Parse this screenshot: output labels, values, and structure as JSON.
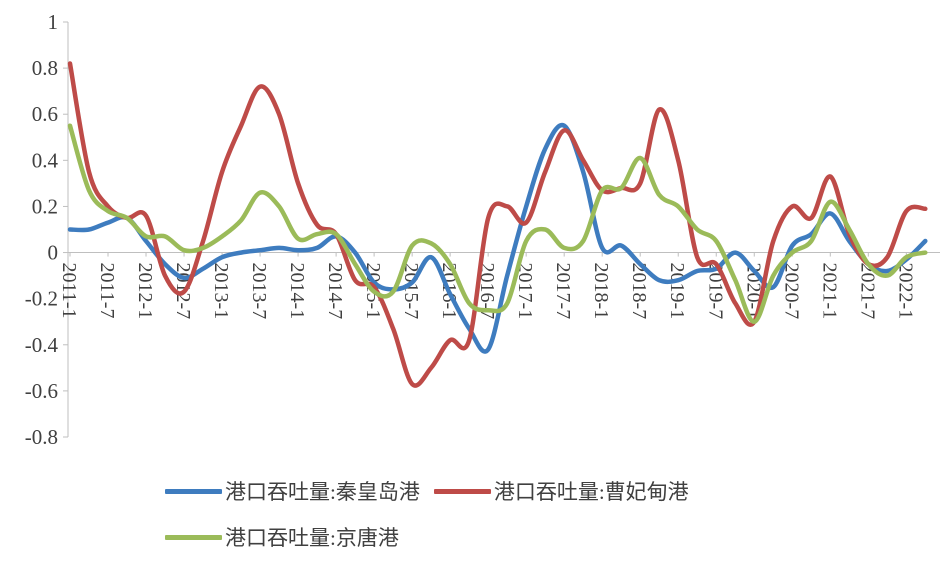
{
  "colors": {
    "text": "#404040",
    "axis": "#BFBFBF",
    "background": "#FFFFFF"
  },
  "chart_data": {
    "type": "line",
    "title": "",
    "xlabel": "",
    "ylabel": "",
    "x_unit": "months since 2011-01 (step 3)",
    "ylim": [
      -0.8,
      1
    ],
    "y_ticks": [
      1,
      0.8,
      0.6,
      0.4,
      0.2,
      0,
      -0.2,
      -0.4,
      -0.6,
      -0.8
    ],
    "x_tick_positions": [
      0,
      6,
      12,
      18,
      24,
      30,
      36,
      42,
      48,
      54,
      60,
      66,
      72,
      78,
      84,
      90,
      96,
      102,
      108,
      114,
      120,
      126,
      132
    ],
    "x_tick_labels": [
      "2011-1",
      "2011-7",
      "2012-1",
      "2012-7",
      "2013-1",
      "2013-7",
      "2014-1",
      "2014-7",
      "2015-1",
      "2015-7",
      "2016-1",
      "2016-7",
      "2017-1",
      "2017-7",
      "2018-1",
      "2018-7",
      "2019-1",
      "2019-7",
      "2020-1",
      "2020-7",
      "2021-1",
      "2021-7",
      "2022-1"
    ],
    "grid": false,
    "legend_position": "bottom",
    "x": [
      0,
      3,
      6,
      9,
      12,
      15,
      18,
      21,
      24,
      27,
      30,
      33,
      36,
      39,
      42,
      45,
      48,
      51,
      54,
      57,
      60,
      63,
      66,
      69,
      72,
      75,
      78,
      81,
      84,
      87,
      90,
      93,
      96,
      99,
      102,
      105,
      108,
      111,
      114,
      117,
      120,
      123,
      126,
      129,
      132,
      135
    ],
    "series": [
      {
        "name": "港口吞吐量:秦皇岛港",
        "color": "#3E7CBF",
        "values": [
          0.1,
          0.1,
          0.13,
          0.15,
          0.05,
          -0.05,
          -0.11,
          -0.07,
          -0.02,
          0.0,
          0.01,
          0.02,
          0.01,
          0.02,
          0.07,
          0.0,
          -0.13,
          -0.16,
          -0.13,
          -0.02,
          -0.18,
          -0.33,
          -0.42,
          -0.1,
          0.2,
          0.45,
          0.55,
          0.35,
          0.02,
          0.03,
          -0.05,
          -0.12,
          -0.12,
          -0.08,
          -0.07,
          0.0,
          -0.08,
          -0.15,
          0.03,
          0.08,
          0.17,
          0.05,
          -0.05,
          -0.08,
          -0.03,
          0.05
        ]
      },
      {
        "name": "港口吞吐量:曹妃甸港",
        "color": "#BE4B48",
        "values": [
          0.82,
          0.35,
          0.2,
          0.15,
          0.16,
          -0.1,
          -0.17,
          0.05,
          0.35,
          0.55,
          0.72,
          0.6,
          0.3,
          0.12,
          0.08,
          -0.12,
          -0.15,
          -0.33,
          -0.57,
          -0.5,
          -0.38,
          -0.38,
          0.15,
          0.2,
          0.13,
          0.35,
          0.53,
          0.4,
          0.27,
          0.28,
          0.3,
          0.62,
          0.4,
          -0.02,
          -0.05,
          -0.22,
          -0.3,
          0.05,
          0.2,
          0.15,
          0.33,
          0.08,
          -0.05,
          -0.02,
          0.18,
          0.19
        ]
      },
      {
        "name": "港口吞吐量:京唐港",
        "color": "#9BBB59",
        "values": [
          0.55,
          0.27,
          0.18,
          0.15,
          0.07,
          0.07,
          0.01,
          0.02,
          0.07,
          0.14,
          0.26,
          0.2,
          0.06,
          0.08,
          0.08,
          -0.05,
          -0.17,
          -0.17,
          0.03,
          0.04,
          -0.05,
          -0.22,
          -0.25,
          -0.22,
          0.05,
          0.1,
          0.02,
          0.05,
          0.27,
          0.28,
          0.41,
          0.25,
          0.2,
          0.1,
          0.05,
          -0.12,
          -0.3,
          -0.1,
          0.0,
          0.05,
          0.22,
          0.1,
          -0.05,
          -0.1,
          -0.02,
          0.0
        ]
      }
    ]
  }
}
